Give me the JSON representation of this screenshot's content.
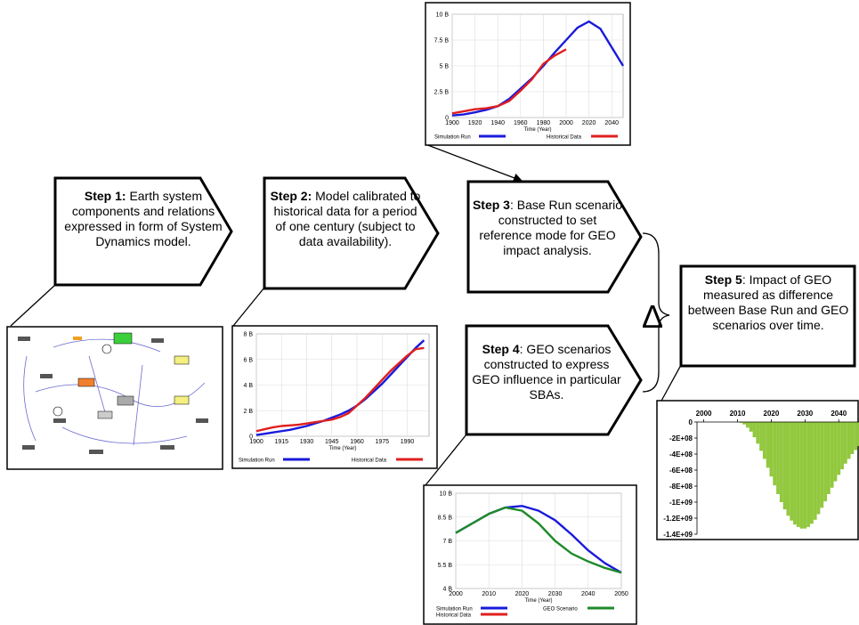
{
  "steps": [
    {
      "label": "Step 1:",
      "text": "Earth system components and relations expressed in form of System Dynamics model."
    },
    {
      "label": "Step 2:",
      "text": "Model calibrated to historical data for a period of one century (subject to data availability)."
    },
    {
      "label": "Step 3",
      "text": ": Base Run scenario constructed to set reference mode for GEO impact analysis."
    },
    {
      "label": "Step 4",
      "text": ": GEO scenarios constructed to express GEO influence in particular SBAs."
    },
    {
      "label": "Step 5",
      "text": ": Impact of GEO measured as difference between Base Run and GEO scenarios over time."
    }
  ],
  "delta": "Δ",
  "chart_data": [
    {
      "type": "line",
      "xlabel": "Time (Year)",
      "grid": true,
      "x": [
        1900,
        1910,
        1920,
        1930,
        1940,
        1950,
        1960,
        1970,
        1980,
        1990,
        2000,
        2010,
        2020,
        2030,
        2040,
        2050
      ],
      "xlim": [
        1900,
        2050
      ],
      "xticks": [
        1900,
        1920,
        1940,
        1960,
        1980,
        2000,
        2020,
        2040
      ],
      "ylim": [
        0,
        10000000000
      ],
      "yticks": [
        0,
        {
          "value": 2500000000,
          "label": "2.5 B"
        },
        {
          "value": 5000000000,
          "label": "5 B"
        },
        {
          "value": 7500000000,
          "label": "7.5 B"
        },
        {
          "value": 10000000000,
          "label": "10 B"
        }
      ],
      "series": [
        {
          "name": "Simulation Run",
          "color": "#1a1adc",
          "values": [
            200000000,
            300000000,
            500000000,
            750000000,
            1100000000,
            1800000000,
            2800000000,
            3800000000,
            5000000000,
            6300000000,
            7500000000,
            8700000000,
            9300000000,
            8600000000,
            6800000000,
            5000000000
          ]
        },
        {
          "name": "Historical Data",
          "color": "#e01f1f",
          "values": [
            400000000,
            600000000,
            800000000,
            900000000,
            1100000000,
            1600000000,
            2600000000,
            3700000000,
            5200000000,
            6000000000,
            6600000000,
            null,
            null,
            null,
            null,
            null
          ]
        }
      ]
    },
    {
      "type": "line",
      "xlabel": "Time (Year)",
      "grid": true,
      "x": [
        1900,
        1905,
        1910,
        1915,
        1920,
        1925,
        1930,
        1935,
        1940,
        1945,
        1950,
        1955,
        1960,
        1965,
        1970,
        1975,
        1980,
        1985,
        1990,
        1995,
        2000
      ],
      "xlim": [
        1900,
        2003
      ],
      "xticks": [
        1900,
        1915,
        1930,
        1945,
        1960,
        1975,
        1990
      ],
      "ylim": [
        0,
        8000000000
      ],
      "yticks": [
        0,
        {
          "value": 2000000000,
          "label": "2 B"
        },
        {
          "value": 4000000000,
          "label": "4 B"
        },
        {
          "value": 6000000000,
          "label": "6 B"
        },
        {
          "value": 8000000000,
          "label": "8 B"
        }
      ],
      "series": [
        {
          "name": "Simulation Run",
          "color": "#1a1adc",
          "values": [
            100000000,
            200000000,
            300000000,
            400000000,
            500000000,
            650000000,
            800000000,
            1000000000,
            1200000000,
            1450000000,
            1700000000,
            2000000000,
            2400000000,
            2900000000,
            3500000000,
            4100000000,
            4800000000,
            5500000000,
            6200000000,
            6900000000,
            7500000000
          ]
        },
        {
          "name": "Historical Data",
          "color": "#e01f1f",
          "values": [
            400000000,
            550000000,
            700000000,
            800000000,
            850000000,
            900000000,
            1000000000,
            1100000000,
            1200000000,
            1300000000,
            1500000000,
            1800000000,
            2400000000,
            3000000000,
            3700000000,
            4400000000,
            5100000000,
            5700000000,
            6300000000,
            6800000000,
            6900000000
          ]
        }
      ]
    },
    {
      "type": "line",
      "xlabel": "Time (Year)",
      "grid": true,
      "x": [
        2000,
        2005,
        2010,
        2015,
        2020,
        2025,
        2030,
        2035,
        2040,
        2045,
        2050
      ],
      "xlim": [
        2000,
        2050
      ],
      "xticks": [
        2000,
        2010,
        2020,
        2030,
        2040,
        2050
      ],
      "ylim": [
        4000000000,
        10000000000
      ],
      "yticks": [
        {
          "value": 4000000000,
          "label": "4 B"
        },
        {
          "value": 5500000000,
          "label": "5.5 B"
        },
        {
          "value": 7000000000,
          "label": "7 B"
        },
        {
          "value": 8500000000,
          "label": "8.5 B"
        },
        {
          "value": 10000000000,
          "label": "10 B"
        }
      ],
      "series": [
        {
          "name": "Simulation Run",
          "color": "#1a1adc",
          "values": [
            7500000000,
            8100000000,
            8700000000,
            9100000000,
            9200000000,
            8900000000,
            8300000000,
            7400000000,
            6400000000,
            5600000000,
            5000000000
          ]
        },
        {
          "name": "Historical Data",
          "color": "#e01f1f",
          "values": [
            null,
            null,
            null,
            null,
            null,
            null,
            null,
            null,
            null,
            null,
            null
          ]
        },
        {
          "name": "GEO Scenario",
          "color": "#1f8a2a",
          "values": [
            7500000000,
            8100000000,
            8700000000,
            9100000000,
            8900000000,
            8100000000,
            7000000000,
            6200000000,
            5700000000,
            5300000000,
            5000000000
          ]
        }
      ]
    },
    {
      "type": "bar",
      "color": "#92c83e",
      "grid": false,
      "x": [
        2011,
        2012,
        2013,
        2014,
        2015,
        2016,
        2017,
        2018,
        2019,
        2020,
        2021,
        2022,
        2023,
        2024,
        2025,
        2026,
        2027,
        2028,
        2029,
        2030,
        2031,
        2032,
        2033,
        2034,
        2035,
        2036,
        2037,
        2038,
        2039,
        2040,
        2041,
        2042,
        2043,
        2044,
        2045,
        2046
      ],
      "values": [
        -10000000,
        -30000000,
        -70000000,
        -120000000,
        -190000000,
        -270000000,
        -360000000,
        -460000000,
        -570000000,
        -680000000,
        -790000000,
        -900000000,
        -1000000000,
        -1090000000,
        -1170000000,
        -1230000000,
        -1280000000,
        -1310000000,
        -1330000000,
        -1330000000,
        -1310000000,
        -1270000000,
        -1220000000,
        -1150000000,
        -1070000000,
        -990000000,
        -900000000,
        -820000000,
        -740000000,
        -660000000,
        -590000000,
        -520000000,
        -460000000,
        -400000000,
        -350000000,
        -300000000
      ],
      "xlim": [
        1998,
        2046
      ],
      "xticks": [
        2000,
        2010,
        2020,
        2030,
        2040
      ],
      "ylim": [
        -1400000000,
        0
      ],
      "yticks": [
        0,
        {
          "value": -200000000,
          "label": "-2E+08"
        },
        {
          "value": -400000000,
          "label": "-4E+08"
        },
        {
          "value": -600000000,
          "label": "-6E+08"
        },
        {
          "value": -800000000,
          "label": "-8E+08"
        },
        {
          "value": -1000000000,
          "label": "-1E+09"
        },
        {
          "value": -1200000000,
          "label": "-1.2E+09"
        },
        {
          "value": -1400000000,
          "label": "-1.4E+09"
        }
      ]
    }
  ]
}
